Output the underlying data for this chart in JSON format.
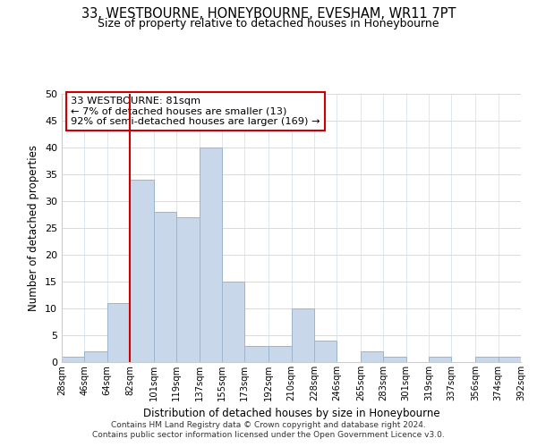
{
  "title": "33, WESTBOURNE, HONEYBOURNE, EVESHAM, WR11 7PT",
  "subtitle": "Size of property relative to detached houses in Honeybourne",
  "xlabel": "Distribution of detached houses by size in Honeybourne",
  "ylabel": "Number of detached properties",
  "bin_edges": [
    28,
    46,
    64,
    82,
    101,
    119,
    137,
    155,
    173,
    192,
    210,
    228,
    246,
    265,
    283,
    301,
    319,
    337,
    356,
    374,
    392
  ],
  "bar_heights": [
    1,
    2,
    11,
    34,
    28,
    27,
    40,
    15,
    3,
    3,
    10,
    4,
    0,
    2,
    1,
    0,
    1,
    0,
    1,
    1
  ],
  "bar_color": "#c8d8ea",
  "bar_edgecolor": "#9ab5cc",
  "vline_x": 82,
  "vline_color": "#cc0000",
  "ylim": [
    0,
    50
  ],
  "yticks": [
    0,
    5,
    10,
    15,
    20,
    25,
    30,
    35,
    40,
    45,
    50
  ],
  "annotation_title": "33 WESTBOURNE: 81sqm",
  "annotation_line1": "← 7% of detached houses are smaller (13)",
  "annotation_line2": "92% of semi-detached houses are larger (169) →",
  "annotation_box_color": "#ffffff",
  "annotation_box_edgecolor": "#cc0000",
  "footer_line1": "Contains HM Land Registry data © Crown copyright and database right 2024.",
  "footer_line2": "Contains public sector information licensed under the Open Government Licence v3.0.",
  "tick_labels": [
    "28sqm",
    "46sqm",
    "64sqm",
    "82sqm",
    "101sqm",
    "119sqm",
    "137sqm",
    "155sqm",
    "173sqm",
    "192sqm",
    "210sqm",
    "228sqm",
    "246sqm",
    "265sqm",
    "283sqm",
    "301sqm",
    "319sqm",
    "337sqm",
    "356sqm",
    "374sqm",
    "392sqm"
  ]
}
